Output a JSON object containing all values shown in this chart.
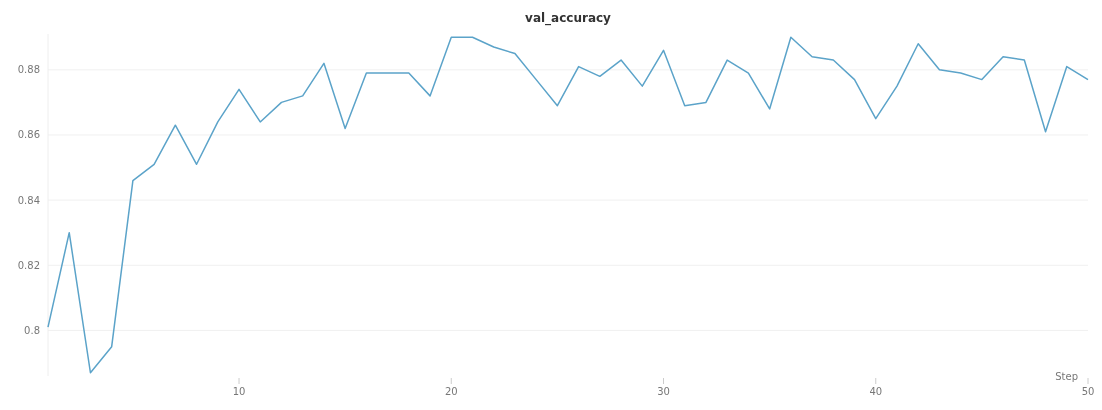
{
  "chart_data": {
    "type": "line",
    "title": "val_accuracy",
    "xlabel": "Step",
    "x": [
      1,
      2,
      3,
      4,
      5,
      6,
      7,
      8,
      9,
      10,
      11,
      12,
      13,
      14,
      15,
      16,
      17,
      18,
      19,
      20,
      21,
      22,
      23,
      24,
      25,
      26,
      27,
      28,
      29,
      30,
      31,
      32,
      33,
      34,
      35,
      36,
      37,
      38,
      39,
      40,
      41,
      42,
      43,
      44,
      45,
      46,
      47,
      48,
      49,
      50
    ],
    "series": [
      {
        "color": "#5ba3c9",
        "values": [
          0.801,
          0.83,
          0.787,
          0.795,
          0.846,
          0.851,
          0.863,
          0.851,
          0.864,
          0.874,
          0.864,
          0.87,
          0.872,
          0.882,
          0.862,
          0.879,
          0.879,
          0.879,
          0.872,
          0.89,
          0.89,
          0.887,
          0.885,
          0.877,
          0.869,
          0.881,
          0.878,
          0.883,
          0.875,
          0.886,
          0.869,
          0.87,
          0.883,
          0.879,
          0.868,
          0.89,
          0.884,
          0.883,
          0.877,
          0.865,
          0.875,
          0.888,
          0.88,
          0.879,
          0.877,
          0.884,
          0.883,
          0.861,
          0.881,
          0.877
        ]
      }
    ],
    "xlim": [
      1,
      50
    ],
    "ylim": [
      0.786,
      0.891
    ],
    "xticks": [
      10,
      20,
      30,
      40,
      50
    ],
    "yticks": [
      0.8,
      0.82,
      0.84,
      0.86,
      0.88
    ],
    "grid": "y",
    "marker": "none",
    "line_style": "solid"
  }
}
